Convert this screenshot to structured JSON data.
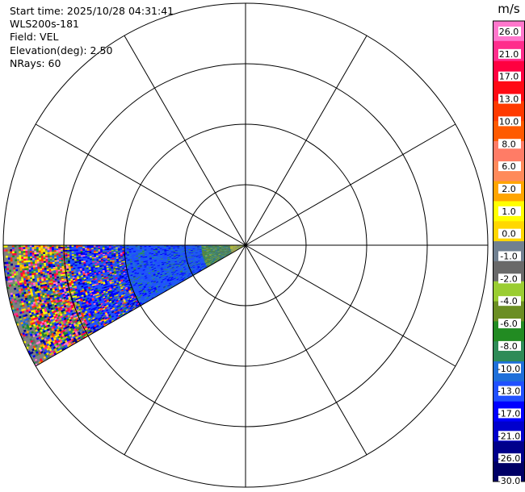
{
  "header": {
    "start_time": "Start time: 2025/10/28 04:31:41",
    "instrument": "WLS200s-181",
    "field": "Field: VEL",
    "elevation": "Elevation(deg): 2.50",
    "nrays": "NRays: 60"
  },
  "chart_data": {
    "type": "heatmap",
    "projection": "polar-ppi",
    "field": "VEL",
    "elevation_deg": 2.5,
    "n_rays": 60,
    "azimuth_sector_deg": [
      240,
      270
    ],
    "range_rings": 4,
    "radial_lines": 12,
    "sector_summary": [
      {
        "from_ring": 0.0,
        "to_ring": 0.35,
        "dominant": "light green / yellow (~ -1 to 2 m/s)"
      },
      {
        "from_ring": 0.35,
        "to_ring": 1.0,
        "dominant": "blue (~ -10 to -17 m/s)"
      },
      {
        "from_ring": 1.0,
        "to_ring": 2.0,
        "dominant": "noisy mixed colors"
      }
    ],
    "colorbar": {
      "unit": "m/s",
      "tick_labels": [
        "26.0",
        "21.0",
        "17.0",
        "13.0",
        "10.0",
        "8.0",
        "6.0",
        "2.0",
        "1.0",
        "0.0",
        "-1.0",
        "-2.0",
        "-4.0",
        "-6.0",
        "-8.0",
        "-10.0",
        "-13.0",
        "-17.0",
        "-21.0",
        "-26.0",
        "-30.0"
      ],
      "colors": [
        "#ff77cc",
        "#ff2d8c",
        "#ff0040",
        "#ff0a14",
        "#ff3a00",
        "#ff5a00",
        "#ff7c66",
        "#ff8a5a",
        "#ffa500",
        "#ffff00",
        "#ffd700",
        "#708090",
        "#696969",
        "#9acd32",
        "#6b8e23",
        "#228b22",
        "#2e8b57",
        "#1e6fd9",
        "#2050ff",
        "#0000ff",
        "#0000cd",
        "#00008b",
        "#000066"
      ]
    }
  }
}
